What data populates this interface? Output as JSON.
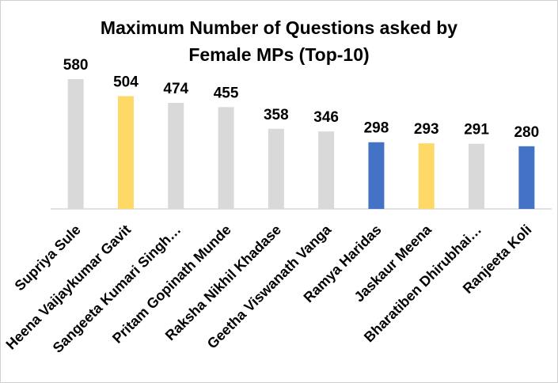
{
  "chart_data": {
    "type": "bar",
    "title_line1": "Maximum Number of Questions asked by",
    "title_line2": "Female MPs (Top-10)",
    "categories": [
      "Supriya Sule",
      "Heena Vaijaykumar Gavit",
      "Sangeeta Kumari Singh…",
      "Pritam Gopinath Munde",
      "Raksha Nikhil Khadase",
      "Geetha Viswanath Vanga",
      "Ramya Haridas",
      "Jaskaur Meena",
      "Bharatiben Dhirubhai…",
      "Ranjeeta Koli"
    ],
    "values": [
      580,
      504,
      474,
      455,
      358,
      346,
      298,
      293,
      291,
      280
    ],
    "bar_colors": [
      "#d9d9d9",
      "#ffd966",
      "#d9d9d9",
      "#d9d9d9",
      "#d9d9d9",
      "#d9d9d9",
      "#4472c4",
      "#ffd966",
      "#d9d9d9",
      "#4472c4"
    ],
    "ylim": [
      0,
      600
    ],
    "grid": false,
    "legend": "none"
  }
}
